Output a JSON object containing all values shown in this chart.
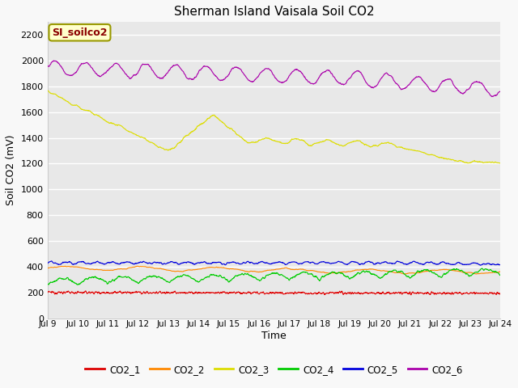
{
  "title": "Sherman Island Vaisala Soil CO2",
  "ylabel": "Soil CO2 (mV)",
  "xlabel": "Time",
  "legend_label": "SI_soilco2",
  "ylim": [
    0,
    2300
  ],
  "yticks": [
    0,
    200,
    400,
    600,
    800,
    1000,
    1200,
    1400,
    1600,
    1800,
    2000,
    2200
  ],
  "x_tick_labels": [
    "Jul 9",
    "Jul 10",
    "Jul 11",
    "Jul 12",
    "Jul 13",
    "Jul 14",
    "Jul 15",
    "Jul 16",
    "Jul 17",
    "Jul 18",
    "Jul 19",
    "Jul 20",
    "Jul 21",
    "Jul 22",
    "Jul 23",
    "Jul 24"
  ],
  "series_colors": {
    "CO2_1": "#dd0000",
    "CO2_2": "#ff8800",
    "CO2_3": "#dddd00",
    "CO2_4": "#00cc00",
    "CO2_5": "#0000dd",
    "CO2_6": "#aa00aa"
  },
  "fig_facecolor": "#f8f8f8",
  "plot_facecolor": "#e8e8e8",
  "grid_color": "#ffffff",
  "n_points": 2000
}
